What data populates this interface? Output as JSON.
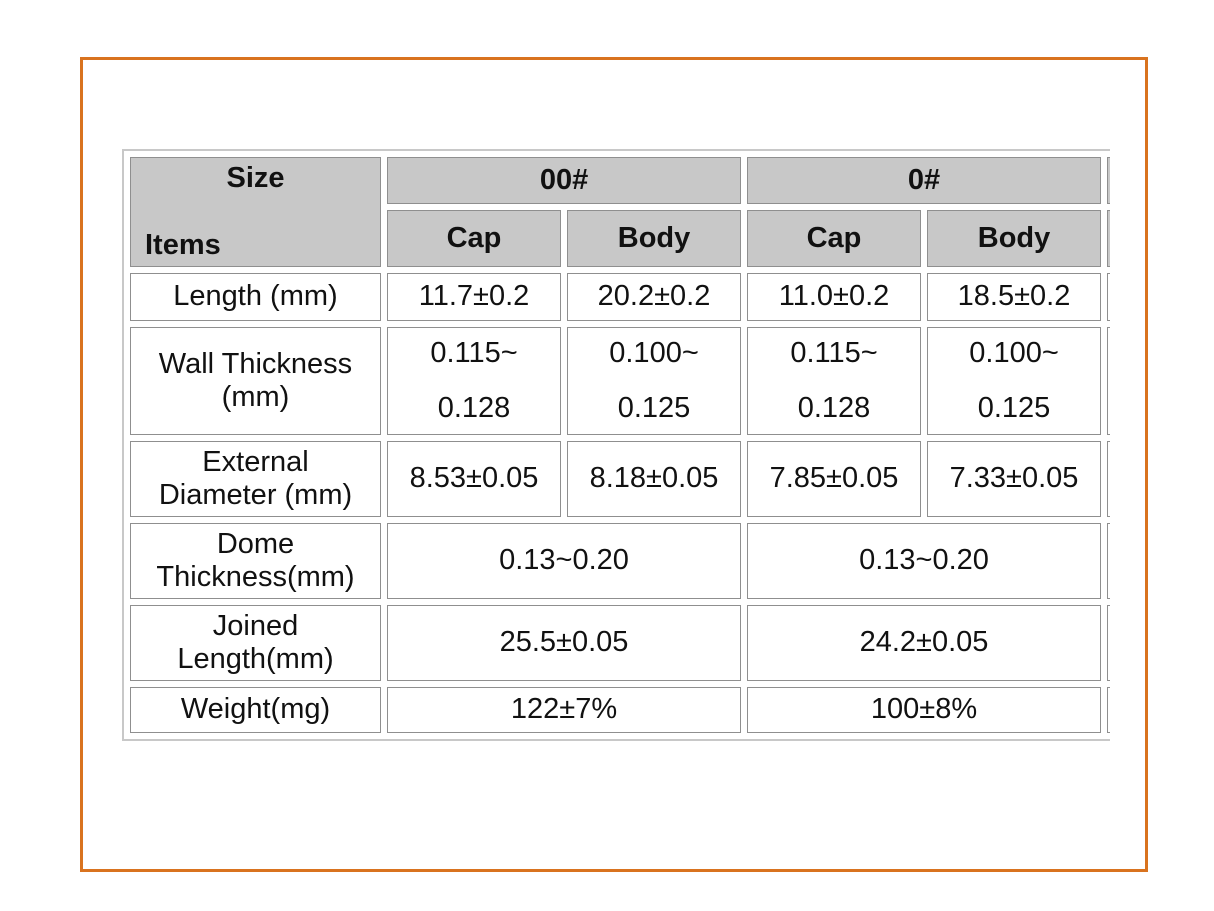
{
  "table": {
    "header": {
      "size_label": "Size",
      "items_label": "Items",
      "groups": [
        "00#",
        "0#"
      ],
      "subheaders": [
        "Cap",
        "Body",
        "Cap",
        "Body"
      ]
    },
    "rows": [
      {
        "label": "Length (mm)",
        "cells": [
          "11.7±0.2",
          "20.2±0.2",
          "11.0±0.2",
          "18.5±0.2"
        ]
      },
      {
        "label_lines": [
          "Wall Thickness",
          "(mm)"
        ],
        "cells": [
          [
            "0.115~",
            "0.128"
          ],
          [
            "0.100~",
            "0.125"
          ],
          [
            "0.115~",
            "0.128"
          ],
          [
            "0.100~",
            "0.125"
          ]
        ]
      },
      {
        "label_lines": [
          "External",
          "Diameter (mm)"
        ],
        "cells": [
          "8.53±0.05",
          "8.18±0.05",
          "7.85±0.05",
          "7.33±0.05"
        ]
      },
      {
        "label_lines": [
          "Dome",
          "Thickness(mm)"
        ],
        "merged": [
          "0.13~0.20",
          "0.13~0.20"
        ]
      },
      {
        "label_lines": [
          "Joined",
          "Length(mm)"
        ],
        "merged": [
          "25.5±0.05",
          "24.2±0.05"
        ]
      },
      {
        "label": "Weight(mg)",
        "merged": [
          "122±7%",
          "100±8%"
        ]
      }
    ]
  },
  "colors": {
    "frame": "#d9731f",
    "header_bg": "#c8c8c8",
    "cell_border": "#8f8f8f"
  }
}
